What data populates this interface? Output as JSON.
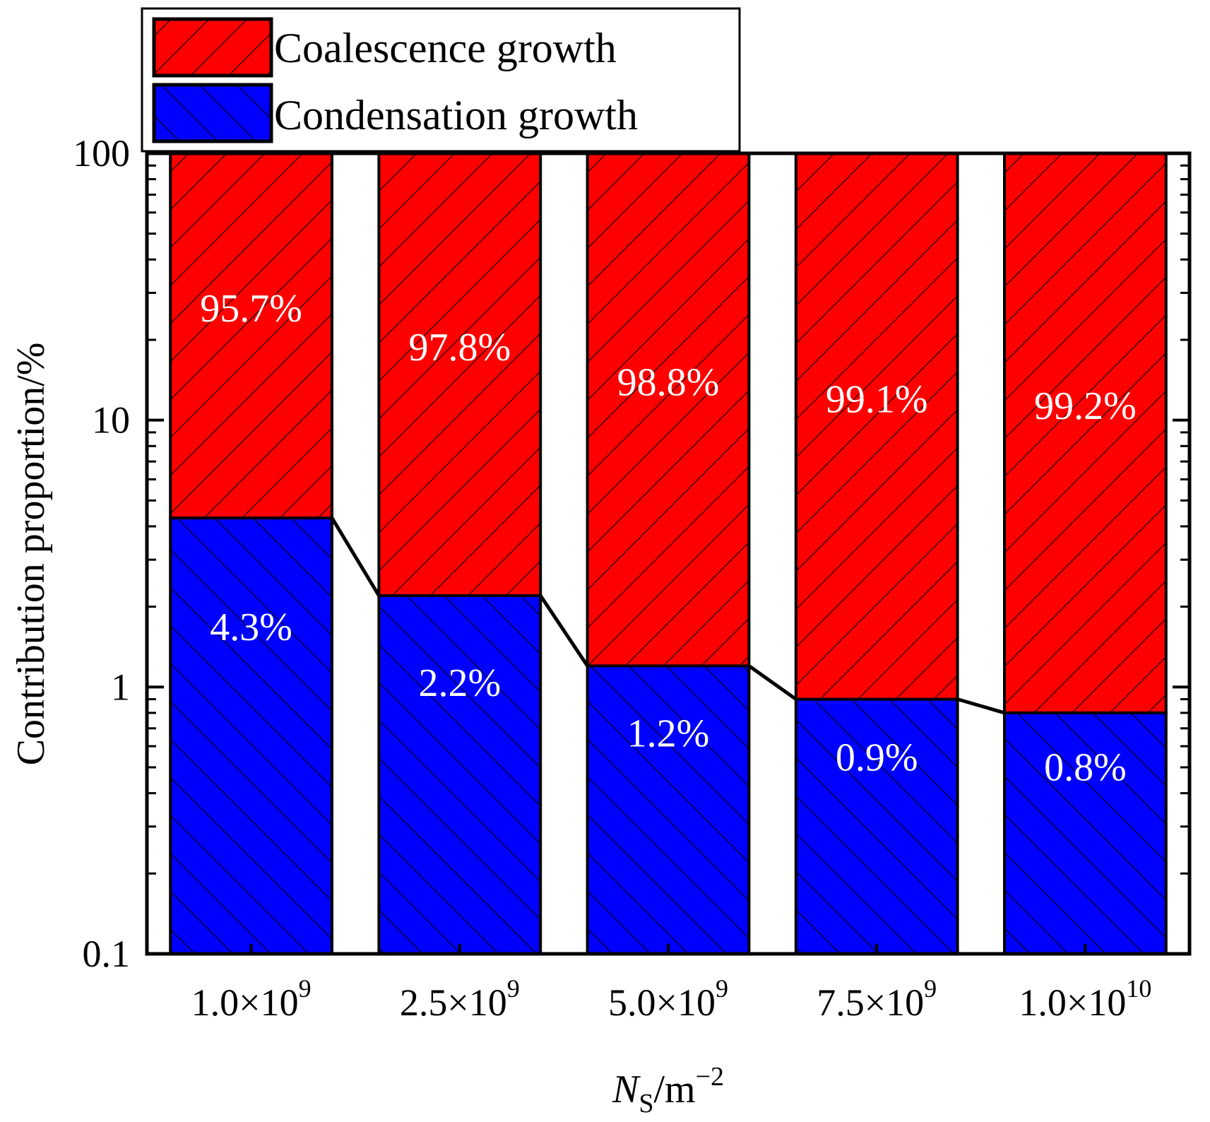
{
  "colors": {
    "coalescence": "#ff0000",
    "condensation": "#0000ff",
    "axis": "#000000",
    "label_text": "#ffffff"
  },
  "chart_data": {
    "type": "bar",
    "subtype": "stacked",
    "yscale": "log",
    "ylim": [
      0.1,
      100
    ],
    "y_ticks": [
      "0.1",
      "1",
      "10",
      "100"
    ],
    "ylabel": "Contribution proportion/%",
    "xlabel": {
      "symbol": "N",
      "subscript": "S",
      "unit": "/m",
      "exponent": "−2"
    },
    "categories": [
      {
        "mantissa": "1.0×10",
        "exp": "9"
      },
      {
        "mantissa": "2.5×10",
        "exp": "9"
      },
      {
        "mantissa": "5.0×10",
        "exp": "9"
      },
      {
        "mantissa": "7.5×10",
        "exp": "9"
      },
      {
        "mantissa": "1.0×10",
        "exp": "10"
      }
    ],
    "series": [
      {
        "name": "Condensation growth",
        "values": [
          4.3,
          2.2,
          1.2,
          0.9,
          0.8
        ],
        "labels": [
          "4.3%",
          "2.2%",
          "1.2%",
          "0.9%",
          "0.8%"
        ]
      },
      {
        "name": "Coalescence growth",
        "values": [
          95.7,
          97.8,
          98.8,
          99.1,
          99.2
        ],
        "labels": [
          "95.7%",
          "97.8%",
          "98.8%",
          "99.1%",
          "99.2%"
        ]
      }
    ],
    "legend": {
      "position": "top-left",
      "entries": [
        "Coalescence growth",
        "Condensation growth"
      ]
    }
  }
}
